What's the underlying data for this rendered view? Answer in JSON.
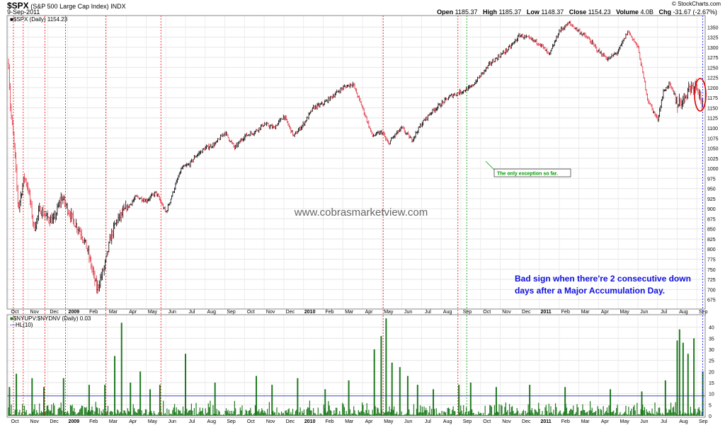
{
  "header": {
    "symbol": "$SPX",
    "name": "(S&P 500 Large Cap Index)",
    "exchange": "INDX",
    "date": "9-Sep-2011",
    "source": "© StockCharts.com",
    "quote": [
      {
        "label": "Open",
        "value": "1185.37"
      },
      {
        "label": "High",
        "value": "1185.37"
      },
      {
        "label": "Low",
        "value": "1148.37"
      },
      {
        "label": "Close",
        "value": "1154.23"
      },
      {
        "label": "Volume",
        "value": "4.0B"
      },
      {
        "label": "Chg",
        "value": "-31.67 (-2.67%)"
      }
    ]
  },
  "price_panel": {
    "legend": "$SPX (Daily) 1154.23",
    "watermark": "www.cobrasmarketview.com",
    "annotation_exception": "The only exception so far.",
    "annotation_main": [
      "Bad sign when there're 2 consecutive down",
      "days after a Major Accumulation Day."
    ]
  },
  "indicator_panel": {
    "legend": "$NYUPV:$NYDNV (Daily) 0.03",
    "legend2": "HL(10)"
  },
  "colors": {
    "up_bar": "#000000",
    "down_bar": "#e23040",
    "signal_line": "#ff0000",
    "exception_line": "#009900",
    "latest_line": "#0000ff",
    "volume_bar": "#1f7a1f",
    "threshold_line": "#2030b0",
    "annotation_text": "#1010dd",
    "circle": "#dd0000"
  },
  "chart_data": [
    {
      "type": "bar",
      "title": "$SPX (S&P 500 Large Cap Index) INDX",
      "y_axis_side": "right",
      "ylim": [
        655,
        1375
      ],
      "y_ticks": [
        675,
        700,
        725,
        750,
        775,
        800,
        825,
        850,
        875,
        900,
        925,
        950,
        975,
        1000,
        1025,
        1050,
        1075,
        1100,
        1125,
        1150,
        1175,
        1200,
        1225,
        1250,
        1275,
        1300,
        1325,
        1350
      ],
      "x_start_month": "2008-10",
      "x_end_month": "2011-09",
      "x_tick_labels": [
        "Oct",
        "Nov",
        "Dec",
        "2009",
        "Feb",
        "Mar",
        "Apr",
        "May",
        "Jun",
        "Jul",
        "Aug",
        "Sep",
        "Oct",
        "Nov",
        "Dec",
        "2010",
        "Feb",
        "Mar",
        "Apr",
        "May",
        "Jun",
        "Jul",
        "Aug",
        "Sep",
        "Oct",
        "Nov",
        "Dec",
        "2011",
        "Feb",
        "Mar",
        "Apr",
        "May",
        "Jun",
        "Jul",
        "Aug",
        "Sep"
      ],
      "series": [
        {
          "x_month_index": [
            0,
            0.1,
            0.3,
            0.5,
            0.8,
            1.0,
            1.3,
            1.6,
            1.9,
            2.3,
            2.7,
            3.0,
            3.3,
            3.7,
            4.0,
            4.5,
            4.9,
            5.2,
            5.5,
            6.0,
            6.5,
            7.0,
            7.5,
            8.0,
            8.5,
            8.8,
            9.2,
            9.5,
            10.0,
            10.5,
            11.0,
            11.5,
            12.0,
            12.5,
            13.0,
            13.5,
            14.0,
            14.5,
            15.0,
            15.5,
            16.0,
            16.5,
            17.0,
            17.5,
            18.0,
            18.5,
            19.0,
            19.3,
            19.6,
            20.0,
            20.5,
            21.0,
            21.5,
            22.0,
            22.5,
            23.0,
            23.5,
            24.0,
            24.5,
            25.0,
            25.5,
            26.0,
            26.5,
            27.0,
            27.5,
            28.0,
            28.5,
            29.0,
            29.5,
            30.0,
            30.5,
            31.0,
            31.5,
            32.0,
            32.5,
            33.0,
            33.3,
            33.6,
            34.0,
            34.3,
            34.6,
            35.0,
            35.3
          ],
          "close": [
            1260,
            1150,
            1050,
            900,
            980,
            950,
            850,
            900,
            880,
            870,
            930,
            900,
            870,
            840,
            800,
            700,
            760,
            830,
            870,
            900,
            930,
            920,
            940,
            890,
            960,
            1000,
            1010,
            1030,
            1050,
            1060,
            1090,
            1050,
            1080,
            1090,
            1110,
            1100,
            1130,
            1080,
            1110,
            1150,
            1160,
            1180,
            1200,
            1210,
            1150,
            1080,
            1090,
            1060,
            1080,
            1100,
            1070,
            1110,
            1140,
            1160,
            1180,
            1190,
            1200,
            1230,
            1260,
            1280,
            1300,
            1330,
            1320,
            1310,
            1280,
            1340,
            1360,
            1340,
            1320,
            1290,
            1270,
            1290,
            1340,
            1300,
            1170,
            1120,
            1190,
            1210,
            1160,
            1170,
            1200,
            1210,
            1154
          ],
          "values": "see close"
        }
      ],
      "signal_lines_month_index": [
        0.25,
        0.75,
        1.85,
        2.9,
        4.95,
        7.75,
        19.05,
        22.85
      ],
      "exception_line_month_index": 23.3,
      "latest_line_month_index": 35.3
    },
    {
      "type": "bar",
      "title": "$NYUPV:$NYDNV (Daily)",
      "ylim": [
        0,
        45
      ],
      "y_ticks": [
        0,
        5,
        10,
        15,
        20,
        25,
        30,
        35,
        40
      ],
      "threshold": 9.0,
      "spikes": [
        {
          "x_month_index": 0.05,
          "value": 13
        },
        {
          "x_month_index": 0.4,
          "value": 19
        },
        {
          "x_month_index": 1.2,
          "value": 17
        },
        {
          "x_month_index": 1.8,
          "value": 13
        },
        {
          "x_month_index": 2.8,
          "value": 17
        },
        {
          "x_month_index": 4.1,
          "value": 14
        },
        {
          "x_month_index": 4.9,
          "value": 14
        },
        {
          "x_month_index": 5.4,
          "value": 27
        },
        {
          "x_month_index": 5.75,
          "value": 42
        },
        {
          "x_month_index": 6.2,
          "value": 15
        },
        {
          "x_month_index": 6.7,
          "value": 20
        },
        {
          "x_month_index": 7.2,
          "value": 12
        },
        {
          "x_month_index": 7.7,
          "value": 14
        },
        {
          "x_month_index": 9.0,
          "value": 28
        },
        {
          "x_month_index": 10.5,
          "value": 15
        },
        {
          "x_month_index": 12.6,
          "value": 18
        },
        {
          "x_month_index": 13.4,
          "value": 14
        },
        {
          "x_month_index": 14.7,
          "value": 17
        },
        {
          "x_month_index": 16.1,
          "value": 12
        },
        {
          "x_month_index": 17.3,
          "value": 16
        },
        {
          "x_month_index": 18.6,
          "value": 30
        },
        {
          "x_month_index": 18.95,
          "value": 36
        },
        {
          "x_month_index": 19.2,
          "value": 44
        },
        {
          "x_month_index": 19.5,
          "value": 24
        },
        {
          "x_month_index": 19.9,
          "value": 22
        },
        {
          "x_month_index": 20.3,
          "value": 18
        },
        {
          "x_month_index": 20.8,
          "value": 14
        },
        {
          "x_month_index": 21.6,
          "value": 12
        },
        {
          "x_month_index": 22.9,
          "value": 14
        },
        {
          "x_month_index": 23.5,
          "value": 15
        },
        {
          "x_month_index": 24.8,
          "value": 13
        },
        {
          "x_month_index": 26.5,
          "value": 14
        },
        {
          "x_month_index": 28.3,
          "value": 13
        },
        {
          "x_month_index": 30.6,
          "value": 12
        },
        {
          "x_month_index": 32.2,
          "value": 11
        },
        {
          "x_month_index": 33.4,
          "value": 16
        },
        {
          "x_month_index": 34.0,
          "value": 34
        },
        {
          "x_month_index": 34.12,
          "value": 39
        },
        {
          "x_month_index": 34.3,
          "value": 33
        },
        {
          "x_month_index": 34.55,
          "value": 28
        },
        {
          "x_month_index": 34.85,
          "value": 35
        },
        {
          "x_month_index": 35.3,
          "value": 20
        }
      ]
    }
  ]
}
